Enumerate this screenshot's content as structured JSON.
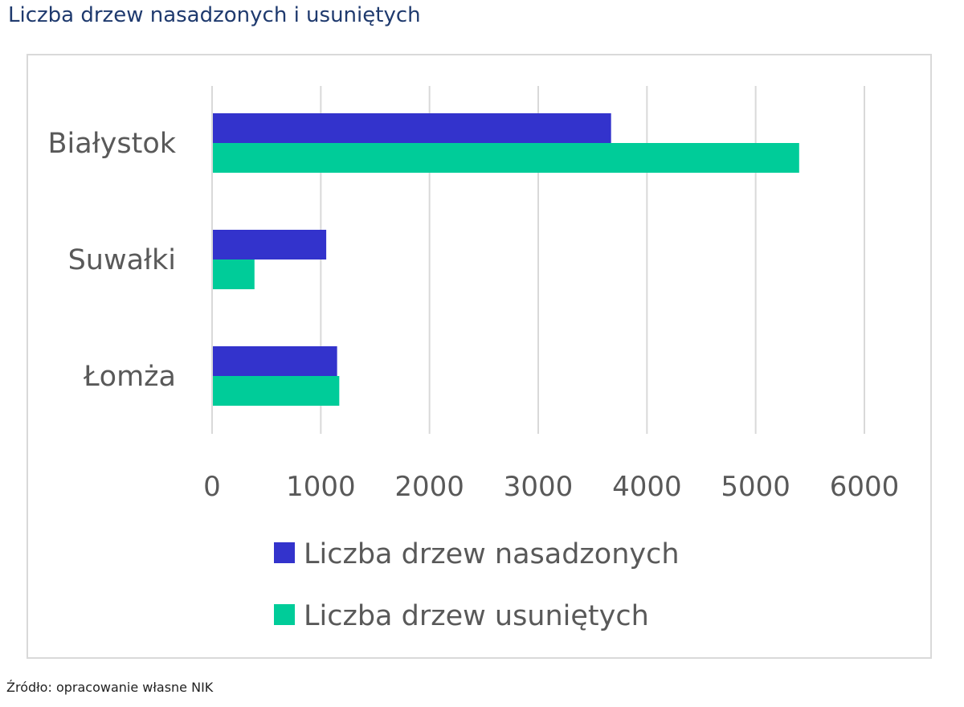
{
  "title": "Liczba drzew nasadzonych i usuniętych",
  "source": "Źródło: opracowanie własne NIK",
  "chart_data": {
    "type": "bar",
    "orientation": "horizontal",
    "categories": [
      "Białystok",
      "Suwałki",
      "Łomża"
    ],
    "series": [
      {
        "name": "Liczba drzew nasadzonych",
        "color": "#3333cc",
        "values": [
          3670,
          1050,
          1150
        ]
      },
      {
        "name": "Liczba drzew usuniętych",
        "color": "#00cc99",
        "values": [
          5400,
          390,
          1170
        ]
      }
    ],
    "xlim": [
      0,
      6000
    ],
    "xticks": [
      "0",
      "1000",
      "2000",
      "3000",
      "4000",
      "5000",
      "6000"
    ],
    "grid": true,
    "legend_position": "bottom"
  }
}
